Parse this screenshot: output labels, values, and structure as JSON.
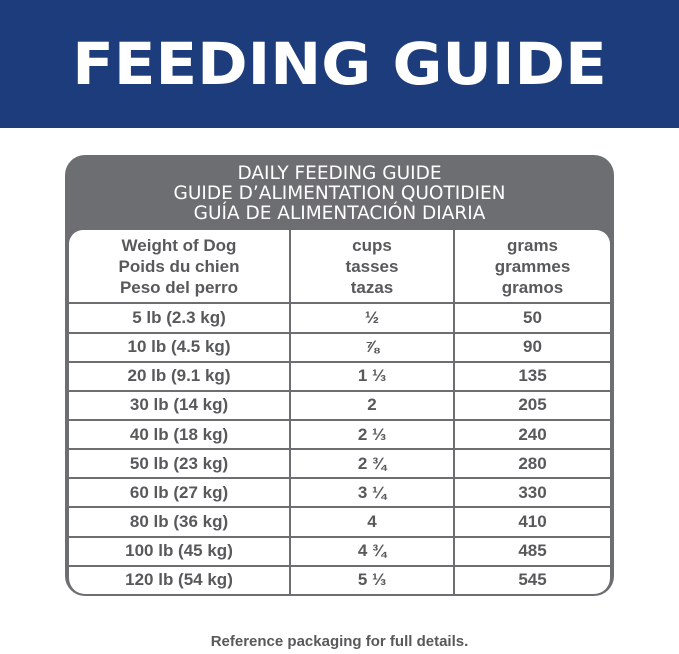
{
  "banner": {
    "title": "FEEDING GUIDE",
    "color": "#1d3c7c"
  },
  "table": {
    "title": [
      "DAILY FEEDING GUIDE",
      "GUIDE D’ALIMENTATION QUOTIDIEN",
      "GUÍA DE ALIMENTACIÓN DIARIA"
    ],
    "headers": [
      [
        "Weight of Dog",
        "Poids du chien",
        "Peso del perro"
      ],
      [
        "cups",
        "tasses",
        "tazas"
      ],
      [
        "grams",
        "grammes",
        "gramos"
      ]
    ],
    "rows": [
      [
        "5 lb (2.3 kg)",
        "½",
        "50"
      ],
      [
        "10 lb (4.5 kg)",
        "⅞",
        "90"
      ],
      [
        "20 lb (9.1 kg)",
        "1 ⅓",
        "135"
      ],
      [
        "30 lb (14 kg)",
        "2",
        "205"
      ],
      [
        "40 lb (18 kg)",
        "2 ⅓",
        "240"
      ],
      [
        "50 lb (23 kg)",
        "2 ¾",
        "280"
      ],
      [
        "60 lb (27 kg)",
        "3 ¼",
        "330"
      ],
      [
        "80 lb (36 kg)",
        "4",
        "410"
      ],
      [
        "100 lb (45 kg)",
        "4 ¾",
        "485"
      ],
      [
        "120 lb (54 kg)",
        "5 ⅓",
        "545"
      ]
    ]
  },
  "footer": "Reference packaging for full details."
}
